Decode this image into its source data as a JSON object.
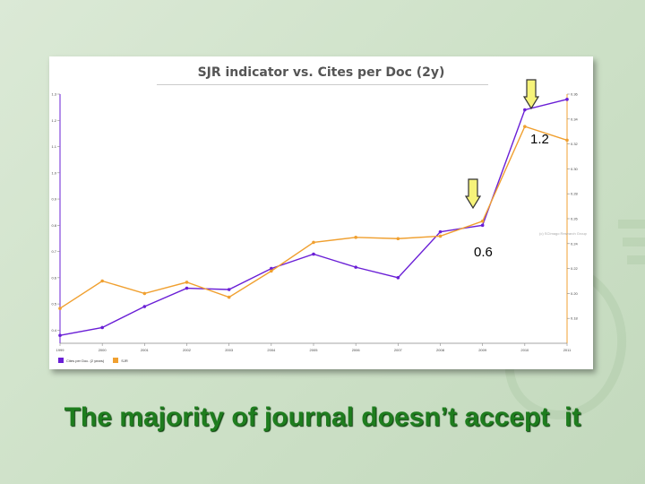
{
  "chart_data": {
    "type": "line",
    "title": "SJR indicator vs. Cites per Doc (2y)",
    "categories": [
      "1999",
      "2000",
      "2001",
      "2002",
      "2003",
      "2004",
      "2005",
      "2006",
      "2007",
      "2008",
      "2009",
      "2010",
      "2011"
    ],
    "left_axis": {
      "ticks": [
        "0.4",
        "0.5",
        "0.6",
        "0.7",
        "0.8",
        "0.9",
        "1.0",
        "1.1",
        "1.2",
        "1.3"
      ],
      "range": [
        0.35,
        1.3
      ]
    },
    "right_axis": {
      "ticks": [
        "0.18",
        "0.20",
        "0.22",
        "0.24",
        "0.26",
        "0.28",
        "0.30",
        "0.32",
        "0.34",
        "0.36"
      ],
      "range": [
        0.16,
        0.36
      ]
    },
    "series": [
      {
        "name": "Cites per Doc. (2 years)",
        "axis": "left",
        "color": "#6a1fd6",
        "values": [
          0.38,
          0.41,
          0.49,
          0.56,
          0.555,
          0.635,
          0.69,
          0.64,
          0.6,
          0.775,
          0.8,
          1.24,
          1.28
        ]
      },
      {
        "name": "SJR",
        "axis": "right",
        "color": "#f0a030",
        "values": [
          0.188,
          0.21,
          0.2,
          0.209,
          0.197,
          0.218,
          0.241,
          0.245,
          0.244,
          0.246,
          0.258,
          0.334,
          0.323
        ]
      }
    ],
    "watermark": "(c) SCImago Research Group"
  },
  "annotations": {
    "callout_high": "1.2",
    "callout_low": "0.6",
    "arrow_color": "#f6f37a"
  },
  "headline": "The majority of journal doesn’t accept  it"
}
